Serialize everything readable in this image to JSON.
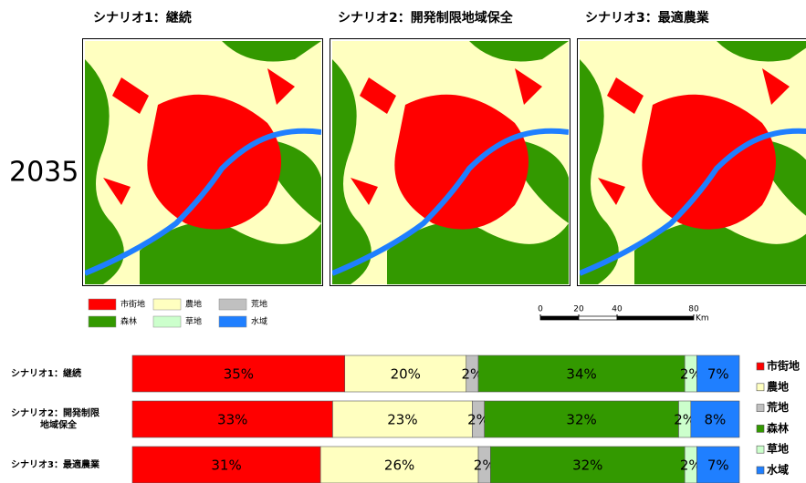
{
  "maps": {
    "year": "2035",
    "titles": [
      "シナリオ1：継続",
      "シナリオ2：開発制限地域保全",
      "シナリオ3：最適農業"
    ],
    "scale": {
      "ticks": [
        0,
        20,
        40,
        80
      ],
      "unit": "Km"
    }
  },
  "chart_data": {
    "type": "bar",
    "orientation": "horizontal",
    "stacked": true,
    "categories": [
      "シナリオ1：継続",
      "シナリオ2：開発制限\n地域保全",
      "シナリオ3：最適農業"
    ],
    "xlim": [
      0,
      100
    ],
    "series": [
      {
        "name": "市街地",
        "color": "#ff0000",
        "values": [
          35,
          33,
          31
        ],
        "value_labels": [
          "35%",
          "33%",
          "31%"
        ]
      },
      {
        "name": "農地",
        "color": "#ffffc0",
        "values": [
          20,
          23,
          26
        ],
        "value_labels": [
          "20%",
          "23%",
          "26%"
        ]
      },
      {
        "name": "荒地",
        "color": "#c0c0c0",
        "values": [
          2,
          2,
          2
        ],
        "value_labels": [
          "2%",
          "2%",
          "2%"
        ]
      },
      {
        "name": "森林",
        "color": "#339900",
        "values": [
          34,
          32,
          32
        ],
        "value_labels": [
          "34%",
          "32%",
          "32%"
        ]
      },
      {
        "name": "草地",
        "color": "#ccffcc",
        "values": [
          2,
          2,
          2
        ],
        "value_labels": [
          "2%",
          "2%",
          "2%"
        ]
      },
      {
        "name": "水域",
        "color": "#1f7fff",
        "values": [
          7,
          8,
          7
        ],
        "value_labels": [
          "7%",
          "8%",
          "7%"
        ]
      }
    ]
  }
}
